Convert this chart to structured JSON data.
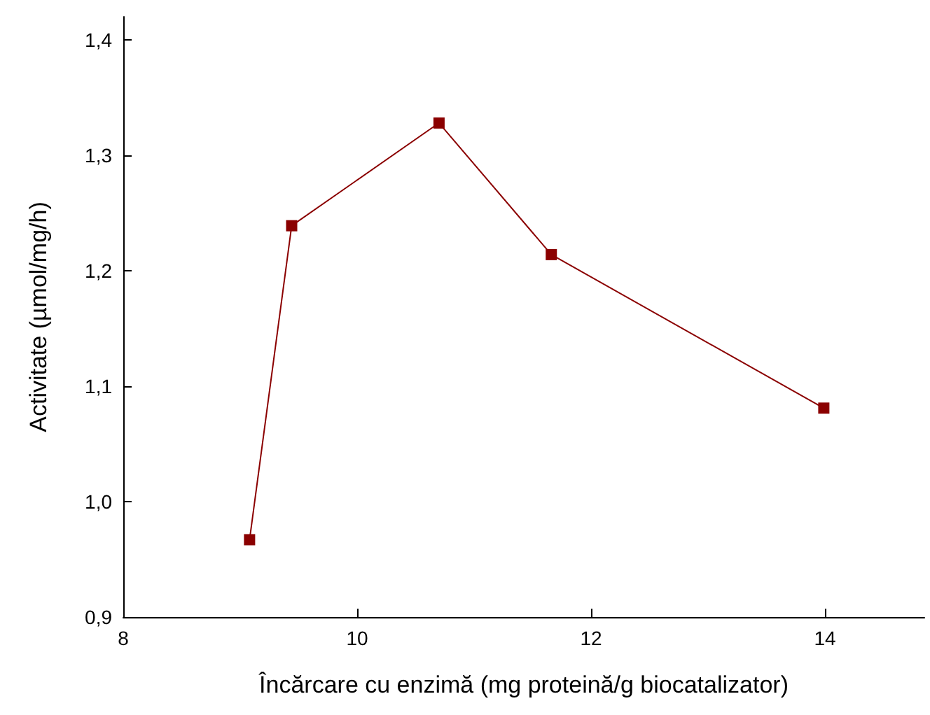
{
  "chart_data": {
    "type": "line",
    "xlabel": "Încărcare cu enzimă (mg proteină/g biocatalizator)",
    "ylabel": "Activitate (µmol/mg/h)",
    "x": [
      9.08,
      9.44,
      10.7,
      11.66,
      13.99
    ],
    "series": [
      {
        "color": "#8b0000",
        "values": [
          0.967,
          1.239,
          1.328,
          1.214,
          1.081
        ]
      }
    ],
    "xlim": [
      8,
      14.85
    ],
    "ylim": [
      0.9,
      1.42
    ],
    "xticks": [
      8,
      10,
      12,
      14
    ],
    "yticks": [
      {
        "value": 0.9,
        "label": "0,9"
      },
      {
        "value": 1.0,
        "label": "1,0"
      },
      {
        "value": 1.1,
        "label": "1,1"
      },
      {
        "value": 1.2,
        "label": "1,2"
      },
      {
        "value": 1.3,
        "label": "1,3"
      },
      {
        "value": 1.4,
        "label": "1,4"
      }
    ],
    "marker": "square",
    "line_style": "solid",
    "grid": false
  }
}
